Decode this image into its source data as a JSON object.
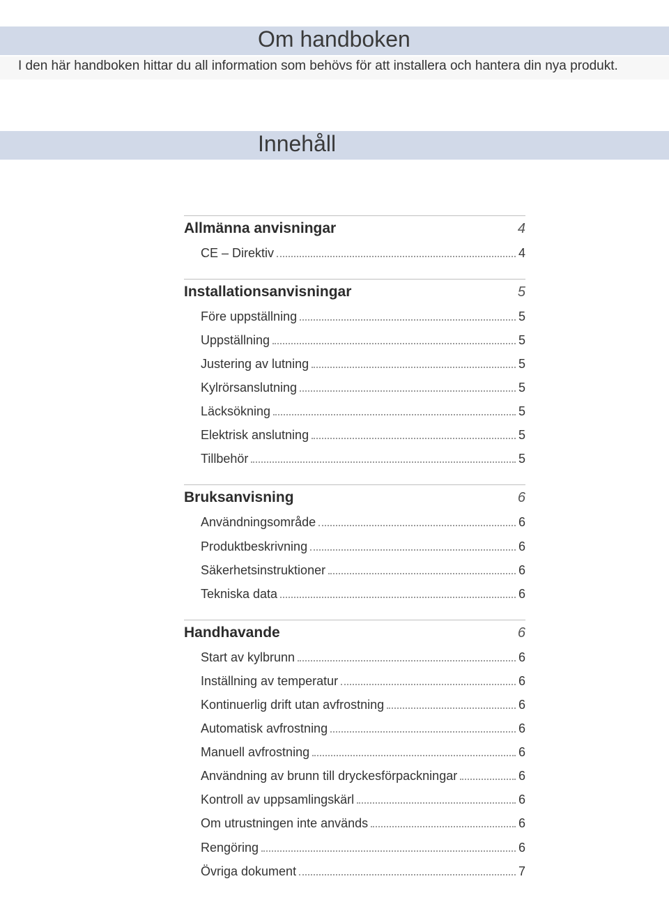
{
  "header": {
    "title": "Om handboken",
    "intro": "I den här handboken hittar du all information som behövs för att installera och hantera din nya produkt."
  },
  "innehall": {
    "title": "Innehåll"
  },
  "toc": {
    "sections": [
      {
        "name": "Allmänna anvisningar",
        "page": "4",
        "items": [
          {
            "label": "CE – Direktiv",
            "page": "4"
          }
        ]
      },
      {
        "name": "Installationsanvisningar",
        "page": "5",
        "items": [
          {
            "label": "Före uppställning",
            "page": "5"
          },
          {
            "label": "Uppställning",
            "page": "5"
          },
          {
            "label": "Justering av lutning",
            "page": "5"
          },
          {
            "label": "Kylrörsanslutning",
            "page": "5"
          },
          {
            "label": "Läcksökning",
            "page": "5"
          },
          {
            "label": "Elektrisk anslutning",
            "page": "5"
          },
          {
            "label": "Tillbehör",
            "page": "5"
          }
        ]
      },
      {
        "name": "Bruksanvisning",
        "page": "6",
        "items": [
          {
            "label": "Användningsområde",
            "page": "6"
          },
          {
            "label": "Produktbeskrivning",
            "page": "6"
          },
          {
            "label": "Säkerhetsinstruktioner",
            "page": "6"
          },
          {
            "label": "Tekniska data",
            "page": "6"
          }
        ]
      },
      {
        "name": "Handhavande",
        "page": "6",
        "items": [
          {
            "label": "Start av kylbrunn",
            "page": "6"
          },
          {
            "label": "Inställning av temperatur",
            "page": "6"
          },
          {
            "label": "Kontinuerlig drift utan avfrostning",
            "page": "6"
          },
          {
            "label": "Automatisk avfrostning",
            "page": "6"
          },
          {
            "label": "Manuell avfrostning",
            "page": "6"
          },
          {
            "label": "Användning av brunn till dryckesförpackningar",
            "page": "6"
          },
          {
            "label": "Kontroll av uppsamlingskärl",
            "page": "6"
          },
          {
            "label": "Om utrustningen inte används",
            "page": "6"
          },
          {
            "label": "Rengöring",
            "page": "6"
          },
          {
            "label": "Övriga dokument",
            "page": "7"
          }
        ]
      }
    ]
  },
  "colors": {
    "band": "#d1d9e8",
    "intro_bg": "#f7f7f7",
    "text": "#231f20",
    "rule": "#bfbfbf",
    "dots": "#9a9a9a"
  }
}
